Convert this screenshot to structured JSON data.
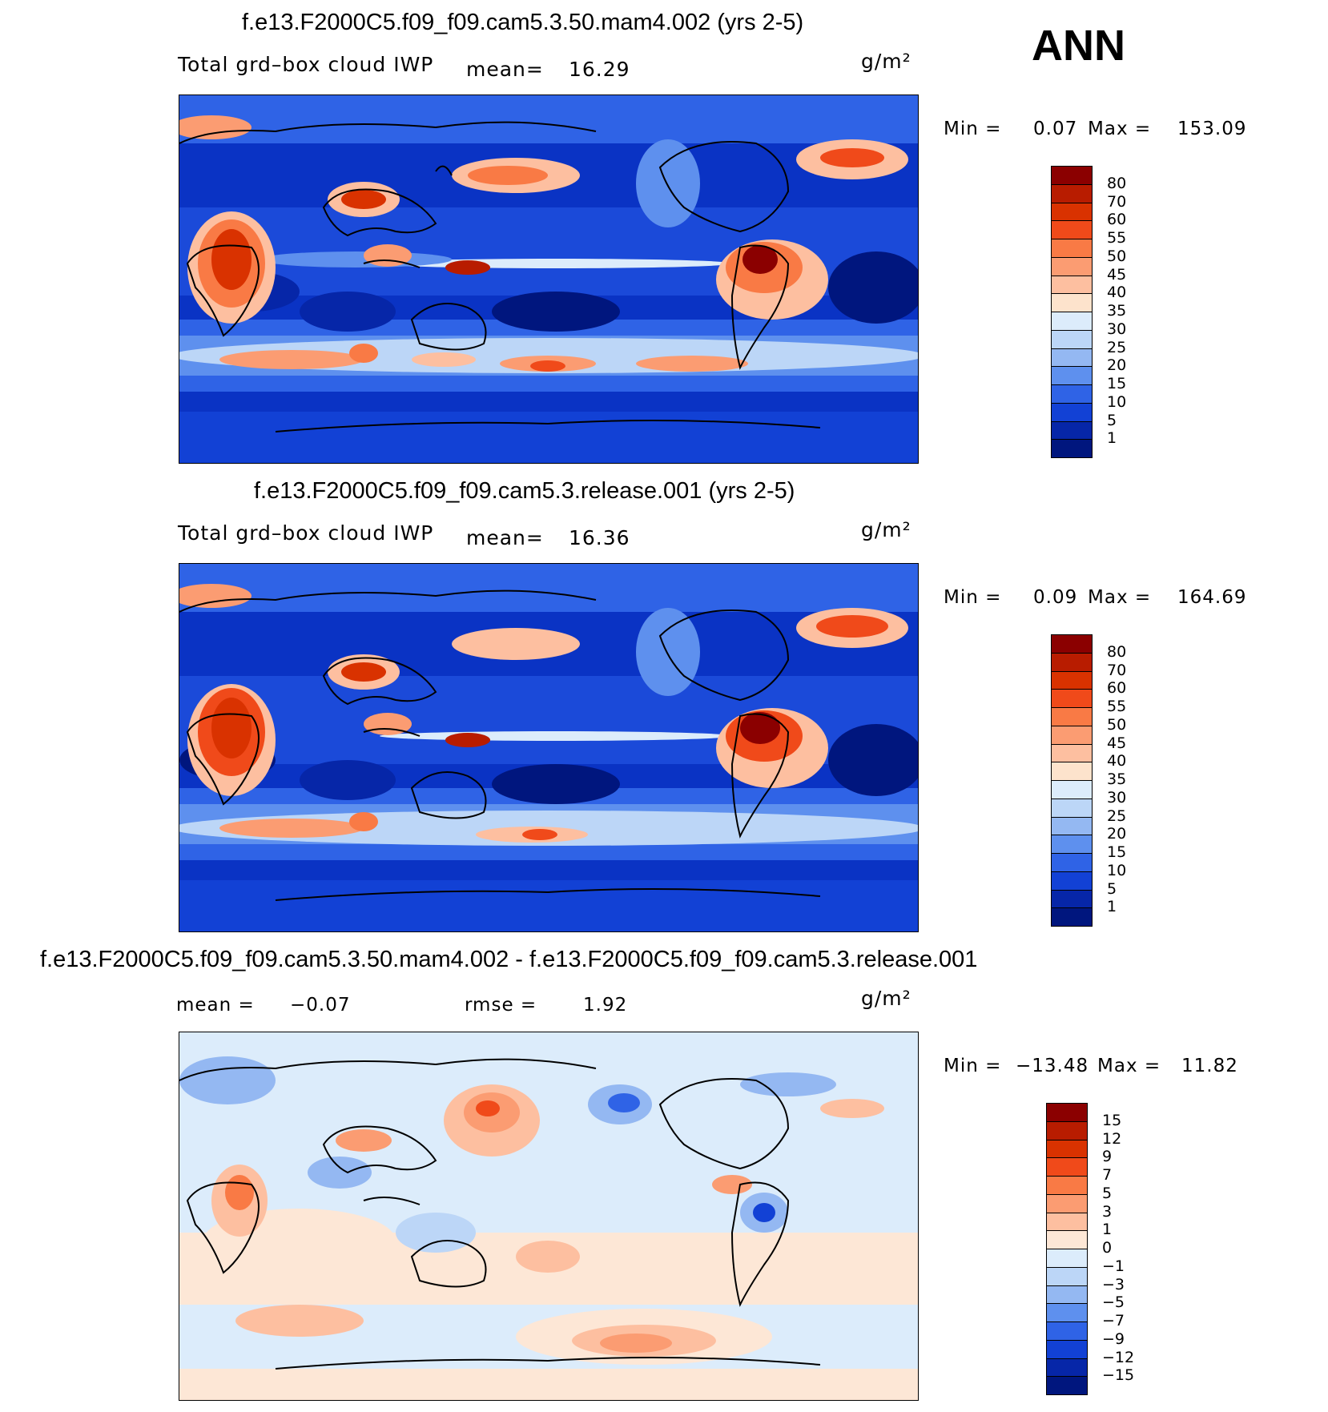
{
  "season": "ANN",
  "units": "g/m²",
  "panels": [
    {
      "title": "f.e13.F2000C5.f09_f09.cam5.3.50.mam4.002 (yrs 2-5)",
      "variable": "Total grd–box cloud IWP",
      "mean_label": "mean=",
      "mean_value": "16.29",
      "min_label": "Min =",
      "min_value": "0.07",
      "max_label": "Max =",
      "max_value": "153.09",
      "colorbar": {
        "levels": [
          "80",
          "70",
          "60",
          "55",
          "50",
          "45",
          "40",
          "35",
          "30",
          "25",
          "20",
          "15",
          "10",
          "5",
          "1"
        ],
        "colors": [
          "#8b0000",
          "#b81c00",
          "#d93200",
          "#f04a1a",
          "#f97a45",
          "#fb9c72",
          "#fdbfa0",
          "#fde3cc",
          "#dcecfb",
          "#bcd6f7",
          "#94b8f2",
          "#5e90ee",
          "#2f63e6",
          "#1241d5",
          "#0626a8",
          "#00167e"
        ]
      }
    },
    {
      "title": "f.e13.F2000C5.f09_f09.cam5.3.release.001 (yrs 2-5)",
      "variable": "Total grd–box cloud IWP",
      "mean_label": "mean=",
      "mean_value": "16.36",
      "min_label": "Min =",
      "min_value": "0.09",
      "max_label": "Max =",
      "max_value": "164.69",
      "colorbar": {
        "levels": [
          "80",
          "70",
          "60",
          "55",
          "50",
          "45",
          "40",
          "35",
          "30",
          "25",
          "20",
          "15",
          "10",
          "5",
          "1"
        ],
        "colors": [
          "#8b0000",
          "#b81c00",
          "#d93200",
          "#f04a1a",
          "#f97a45",
          "#fb9c72",
          "#fdbfa0",
          "#fde3cc",
          "#dcecfb",
          "#bcd6f7",
          "#94b8f2",
          "#5e90ee",
          "#2f63e6",
          "#1241d5",
          "#0626a8",
          "#00167e"
        ]
      }
    },
    {
      "title": "f.e13.F2000C5.f09_f09.cam5.3.50.mam4.002 - f.e13.F2000C5.f09_f09.cam5.3.release.001",
      "mean_label": "mean =",
      "mean_value": "−0.07",
      "rmse_label": "rmse =",
      "rmse_value": "1.92",
      "min_label": "Min =",
      "min_value": "−13.48",
      "max_label": "Max =",
      "max_value": "11.82",
      "colorbar": {
        "levels": [
          "15",
          "12",
          "9",
          "7",
          "5",
          "3",
          "1",
          "0",
          "−1",
          "−3",
          "−5",
          "−7",
          "−9",
          "−12",
          "−15"
        ],
        "colors": [
          "#8b0000",
          "#b81c00",
          "#d93200",
          "#f04a1a",
          "#f97a45",
          "#fb9c72",
          "#fdbfa0",
          "#fde7d6",
          "#dcecfb",
          "#bcd6f7",
          "#94b8f2",
          "#5e90ee",
          "#2f63e6",
          "#1241d5",
          "#0626a8",
          "#00167e"
        ]
      }
    }
  ]
}
